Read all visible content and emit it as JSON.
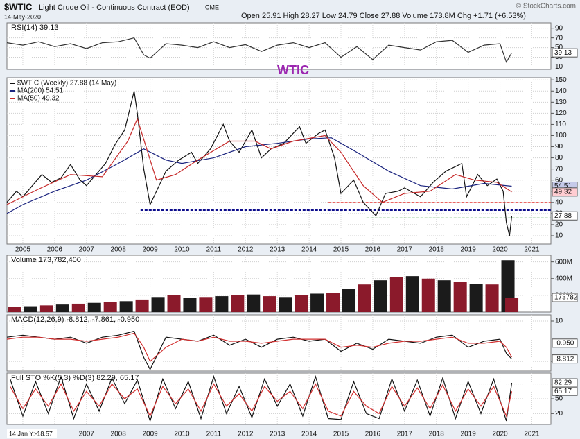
{
  "header": {
    "symbol": "$WTIC",
    "title": "Light Crude Oil - Continuous Contract (EOD)",
    "exchange": "CME",
    "date": "14-May-2020",
    "quote": "Open 25.91  High 28.27  Low 24.79  Close 27.88  Volume 173.8M  Chg +1.71 (+6.53%)",
    "copyright": "© StockCharts.com",
    "cursor": "14 Jan Y:-18.57"
  },
  "chart_data": [
    {
      "type": "line",
      "title": "RSI(14) 39.13",
      "annotation": "WTIC",
      "xlim": [
        2004.5,
        2021.6
      ],
      "ylim": [
        5,
        101
      ],
      "yticks": [
        10,
        30,
        50,
        70,
        90
      ],
      "x": [
        2004.5,
        2005.0,
        2005.5,
        2006.0,
        2006.5,
        2007.0,
        2007.5,
        2008.0,
        2008.5,
        2008.8,
        2009.0,
        2009.5,
        2010.0,
        2010.5,
        2011.0,
        2011.5,
        2012.0,
        2012.5,
        2013.0,
        2013.5,
        2014.0,
        2014.5,
        2015.0,
        2015.5,
        2016.0,
        2016.5,
        2017.0,
        2017.5,
        2018.0,
        2018.5,
        2019.0,
        2019.5,
        2020.0,
        2020.2,
        2020.37
      ],
      "series": [
        {
          "color": "#333333",
          "values": [
            60,
            55,
            62,
            52,
            58,
            48,
            60,
            62,
            70,
            35,
            28,
            58,
            55,
            50,
            62,
            50,
            56,
            42,
            55,
            60,
            50,
            60,
            30,
            52,
            25,
            55,
            50,
            45,
            62,
            65,
            40,
            55,
            58,
            20,
            39.13
          ]
        }
      ],
      "tags": [
        {
          "value": 39.13,
          "color": "#ffffff"
        }
      ]
    },
    {
      "type": "line",
      "xlim": [
        2004.5,
        2021.6
      ],
      "ylim": [
        2.5,
        152
      ],
      "yticks": [
        10,
        20,
        30,
        40,
        50,
        60,
        70,
        80,
        90,
        100,
        110,
        120,
        130,
        140,
        150
      ],
      "xticks": [
        2005,
        2006,
        2007,
        2008,
        2009,
        2010,
        2011,
        2012,
        2013,
        2014,
        2015,
        2016,
        2017,
        2018,
        2019,
        2020,
        2021
      ],
      "series": [
        {
          "name": "$WTIC (Weekly) 27.88 (14 May)",
          "color": "#111111",
          "x": [
            2004.5,
            2004.8,
            2005.0,
            2005.3,
            2005.6,
            2005.9,
            2006.2,
            2006.5,
            2006.8,
            2007.0,
            2007.3,
            2007.6,
            2007.9,
            2008.2,
            2008.5,
            2008.6,
            2008.8,
            2009.0,
            2009.2,
            2009.5,
            2009.9,
            2010.3,
            2010.5,
            2010.9,
            2011.3,
            2011.5,
            2011.8,
            2012.2,
            2012.5,
            2012.8,
            2013.2,
            2013.7,
            2013.9,
            2014.3,
            2014.5,
            2014.8,
            2015.0,
            2015.4,
            2015.7,
            2016.1,
            2016.4,
            2016.8,
            2017.0,
            2017.5,
            2017.9,
            2018.3,
            2018.8,
            2018.95,
            2019.3,
            2019.6,
            2019.9,
            2020.1,
            2020.2,
            2020.3,
            2020.37
          ],
          "values": [
            40,
            50,
            45,
            55,
            65,
            58,
            62,
            74,
            60,
            55,
            65,
            75,
            92,
            105,
            140,
            120,
            70,
            38,
            50,
            68,
            78,
            85,
            75,
            88,
            110,
            95,
            85,
            105,
            80,
            88,
            93,
            108,
            93,
            102,
            105,
            80,
            48,
            60,
            40,
            28,
            48,
            50,
            53,
            45,
            58,
            68,
            75,
            45,
            65,
            55,
            61,
            50,
            22,
            10,
            27.88
          ]
        },
        {
          "name": "MA(200) 54.51",
          "color": "#1a237e",
          "x": [
            2004.5,
            2005,
            2006,
            2007,
            2008,
            2008.8,
            2009.5,
            2010,
            2011,
            2012,
            2013,
            2014,
            2014.7,
            2015.5,
            2016.5,
            2017.5,
            2018.5,
            2019.5,
            2020.37
          ],
          "values": [
            30,
            38,
            50,
            60,
            75,
            88,
            78,
            75,
            80,
            90,
            93,
            97,
            98,
            85,
            68,
            55,
            52,
            57,
            54.51
          ]
        },
        {
          "name": "MA(50) 49.32",
          "color": "#c62828",
          "x": [
            2004.5,
            2005.5,
            2006.5,
            2007.5,
            2008.3,
            2008.6,
            2009.2,
            2009.8,
            2010.5,
            2011.5,
            2012.3,
            2012.8,
            2013.5,
            2014.5,
            2015.0,
            2015.7,
            2016.3,
            2017,
            2017.8,
            2018.6,
            2019.2,
            2019.9,
            2020.37
          ],
          "values": [
            38,
            52,
            65,
            63,
            95,
            115,
            60,
            65,
            78,
            95,
            95,
            88,
            95,
            100,
            85,
            55,
            40,
            48,
            50,
            65,
            60,
            58,
            49.32
          ]
        }
      ],
      "hlines": [
        {
          "value": 40,
          "from": 2014.6,
          "color": "#e53935",
          "width": 1
        },
        {
          "value": 33,
          "from": 2008.7,
          "color": "#0d0d8c",
          "width": 2
        },
        {
          "value": 26,
          "from": 2015.8,
          "color": "#43a047",
          "width": 1
        }
      ],
      "tags": [
        {
          "value": 54.51,
          "color": "#c5cae9"
        },
        {
          "value": 49.32,
          "color": "#ffcdd2"
        },
        {
          "value": 27.88,
          "color": "#ffffff"
        }
      ]
    },
    {
      "type": "bar",
      "title": "Volume 173,782,400",
      "xlim": [
        2004.5,
        2021.6
      ],
      "ylim": [
        0,
        680000000
      ],
      "yticks": [
        {
          "value": 200000000,
          "label": "200M"
        },
        {
          "value": 400000000,
          "label": "400M"
        },
        {
          "value": 600000000,
          "label": "600M"
        }
      ],
      "x": [
        2004.75,
        2005.25,
        2005.75,
        2006.25,
        2006.75,
        2007.25,
        2007.75,
        2008.25,
        2008.75,
        2009.25,
        2009.75,
        2010.25,
        2010.75,
        2011.25,
        2011.75,
        2012.25,
        2012.75,
        2013.25,
        2013.75,
        2014.25,
        2014.75,
        2015.25,
        2015.75,
        2016.25,
        2016.75,
        2017.25,
        2017.75,
        2018.25,
        2018.75,
        2019.25,
        2019.75,
        2020.25,
        2020.37
      ],
      "series": [
        {
          "color": "#8b1a2b",
          "values": [
            60000000,
            70000000,
            80000000,
            90000000,
            100000000,
            110000000,
            120000000,
            130000000,
            150000000,
            180000000,
            200000000,
            170000000,
            180000000,
            190000000,
            200000000,
            210000000,
            190000000,
            180000000,
            200000000,
            220000000,
            230000000,
            280000000,
            330000000,
            380000000,
            420000000,
            430000000,
            400000000,
            380000000,
            360000000,
            340000000,
            330000000,
            620000000,
            173782400
          ]
        }
      ],
      "tags": [
        {
          "value": 173782400,
          "label": "173782",
          "color": "#ffffff"
        }
      ]
    },
    {
      "type": "line",
      "title": "MACD(12,26,9) -8.812, -7.861, -0.950",
      "xlim": [
        2004.5,
        2021.6
      ],
      "ylim": [
        -14.8,
        13.1
      ],
      "yticks": [
        -10,
        10
      ],
      "x": [
        2004.5,
        2005.0,
        2005.5,
        2006.0,
        2006.5,
        2007.0,
        2007.5,
        2008.0,
        2008.5,
        2008.8,
        2009.0,
        2009.5,
        2010.0,
        2010.5,
        2011.0,
        2011.5,
        2012.0,
        2012.5,
        2013.0,
        2013.5,
        2014.0,
        2014.5,
        2015.0,
        2015.5,
        2016.0,
        2016.5,
        2017.0,
        2017.5,
        2018.0,
        2018.5,
        2019.0,
        2019.5,
        2020.0,
        2020.2,
        2020.37
      ],
      "series": [
        {
          "color": "#111111",
          "values": [
            2,
            3,
            2,
            1,
            2,
            -1,
            2,
            3,
            5,
            -8,
            -14,
            2,
            1,
            0,
            3,
            -2,
            1,
            -3,
            1,
            2,
            0,
            1,
            -5,
            -1,
            -4,
            1,
            0,
            -1,
            2,
            3,
            -3,
            0,
            1,
            -6,
            -8.812
          ]
        },
        {
          "color": "#d32f2f",
          "values": [
            1,
            2,
            2,
            1,
            1,
            0,
            1,
            2,
            4,
            -3,
            -10,
            -3,
            1,
            0,
            2,
            0,
            0,
            -1,
            0,
            1,
            1,
            1,
            -3,
            -2,
            -3,
            -1,
            0,
            0,
            1,
            2,
            -1,
            -1,
            0,
            -3,
            -7.861
          ]
        }
      ],
      "tags": [
        {
          "value": -0.95,
          "label": "-0.950",
          "color": "#ffffff"
        },
        {
          "value": -8.812,
          "color": "#ffffff"
        }
      ]
    },
    {
      "type": "line",
      "title": "Full STO %K(5,3) %D(3) 82.29, 65.17",
      "xlim": [
        2004.5,
        2021.6
      ],
      "ylim": [
        -2,
        102
      ],
      "yticks": [
        20,
        50,
        80
      ],
      "xticks": [
        2007,
        2008,
        2009,
        2010,
        2011,
        2012,
        2013,
        2014,
        2015,
        2016,
        2017,
        2018,
        2019,
        2020,
        2021
      ],
      "x": [
        2004.6,
        2005.0,
        2005.4,
        2005.8,
        2006.2,
        2006.6,
        2007.0,
        2007.4,
        2007.8,
        2008.2,
        2008.6,
        2009.0,
        2009.4,
        2009.8,
        2010.2,
        2010.6,
        2011.0,
        2011.4,
        2011.8,
        2012.2,
        2012.6,
        2013.0,
        2013.4,
        2013.8,
        2014.2,
        2014.6,
        2015.0,
        2015.4,
        2015.8,
        2016.2,
        2016.6,
        2017.0,
        2017.4,
        2017.8,
        2018.2,
        2018.6,
        2019.0,
        2019.4,
        2019.8,
        2020.2,
        2020.37
      ],
      "series": [
        {
          "color": "#111111",
          "values": [
            90,
            15,
            85,
            20,
            95,
            10,
            80,
            25,
            92,
            40,
            88,
            5,
            90,
            30,
            85,
            10,
            95,
            20,
            75,
            12,
            90,
            35,
            80,
            15,
            95,
            10,
            8,
            85,
            20,
            10,
            90,
            25,
            88,
            15,
            92,
            10,
            85,
            20,
            90,
            5,
            82.29
          ]
        },
        {
          "color": "#d32f2f",
          "values": [
            75,
            30,
            70,
            35,
            80,
            25,
            65,
            35,
            80,
            50,
            70,
            15,
            75,
            40,
            70,
            25,
            80,
            35,
            60,
            25,
            75,
            45,
            65,
            30,
            80,
            25,
            15,
            65,
            35,
            20,
            75,
            35,
            72,
            30,
            78,
            25,
            70,
            35,
            75,
            15,
            65.17
          ]
        }
      ],
      "tags": [
        {
          "value": 82.29,
          "color": "#ffffff"
        },
        {
          "value": 65.17,
          "color": "#ffffff"
        }
      ]
    }
  ]
}
